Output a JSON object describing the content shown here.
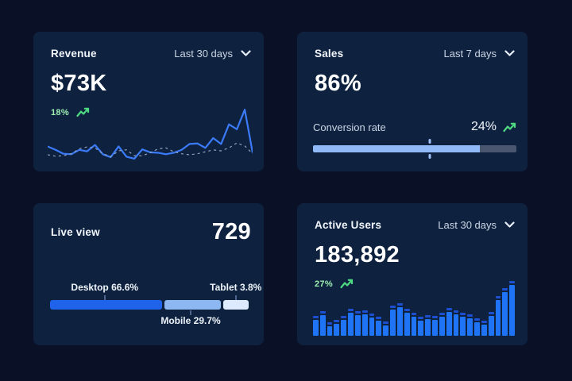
{
  "cards": {
    "revenue": {
      "title": "Revenue",
      "period": "Last 30 days",
      "value": "$73K",
      "delta": "18%"
    },
    "sales": {
      "title": "Sales",
      "period": "Last 7 days",
      "value": "86%",
      "metric_label": "Conversion rate",
      "delta": "24%"
    },
    "live_view": {
      "title": "Live view",
      "value": "729"
    },
    "active_users": {
      "title": "Active Users",
      "period": "Last 30 days",
      "value": "183,892",
      "delta": "27%"
    }
  },
  "colors": {
    "background": "#0a1126",
    "card": "#0e2240",
    "green_text": "#9cefb0",
    "green_icon": "#4fd981",
    "period_text": "#c9d5e4",
    "chevron": "#e8eef6"
  },
  "chart_data": [
    {
      "id": "revenue_trend",
      "type": "line",
      "title": "Revenue — Last 30 days",
      "grid": false,
      "legend": false,
      "axes_visible": false,
      "y_range_note": "values normalized 0-100, axes not shown in UI",
      "series": [
        {
          "name": "current-period",
          "style": "solid",
          "color": "#3b7bfa",
          "values": [
            25,
            18,
            10,
            9,
            18,
            15,
            28,
            9,
            3,
            25,
            4,
            0,
            19,
            13,
            12,
            9,
            12,
            18,
            30,
            31,
            22,
            42,
            30,
            70,
            60,
            100,
            12
          ]
        },
        {
          "name": "previous-period",
          "style": "dashed",
          "color": "#8fa3bd",
          "values": [
            8,
            5,
            6,
            10,
            20,
            24,
            22,
            10,
            4,
            16,
            18,
            6,
            6,
            12,
            20,
            22,
            14,
            10,
            8,
            10,
            14,
            18,
            16,
            22,
            32,
            26,
            10
          ]
        }
      ]
    },
    {
      "id": "sales_conversion",
      "type": "bar",
      "subtype": "progress",
      "label": "Conversion rate",
      "value_pct": 86,
      "fill_pct": 82,
      "marker_pct": 57.4,
      "fill_color": "#8fb9f7",
      "track_color": "#4a5670",
      "marker_color": "#9dc0f9"
    },
    {
      "id": "live_view_devices",
      "type": "bar",
      "subtype": "stacked-horizontal",
      "segments": [
        {
          "label": "Desktop",
          "value_pct": 66.6,
          "display": "Desktop 66.6%",
          "color": "#1e63e9",
          "width_pct": 56.5,
          "anchor_pct": 27.5,
          "label_position": "above"
        },
        {
          "label": "Mobile",
          "value_pct": 29.7,
          "display": "Mobile 29.7%",
          "color": "#8cb7f0",
          "width_pct": 28.5,
          "anchor_pct": 70.8,
          "label_position": "below"
        },
        {
          "label": "Tablet",
          "value_pct": 3.8,
          "display": "Tablet 3.8%",
          "color": "#ddeafd",
          "width_pct": 13.0,
          "anchor_pct": 93.5,
          "label_position": "above"
        }
      ]
    },
    {
      "id": "active_users_daily",
      "type": "bar",
      "subtype": "vertical-capped",
      "bar_color": "#1f74f6",
      "cap_color": "#1d4fd1",
      "y_range_note": "values normalized 0-100, axes not shown in UI",
      "values": [
        32,
        40,
        19,
        24,
        32,
        46,
        40,
        42,
        36,
        30,
        21,
        51,
        56,
        46,
        38,
        30,
        33,
        32,
        38,
        47,
        43,
        38,
        35,
        26,
        22,
        39,
        70,
        86,
        100
      ]
    }
  ]
}
